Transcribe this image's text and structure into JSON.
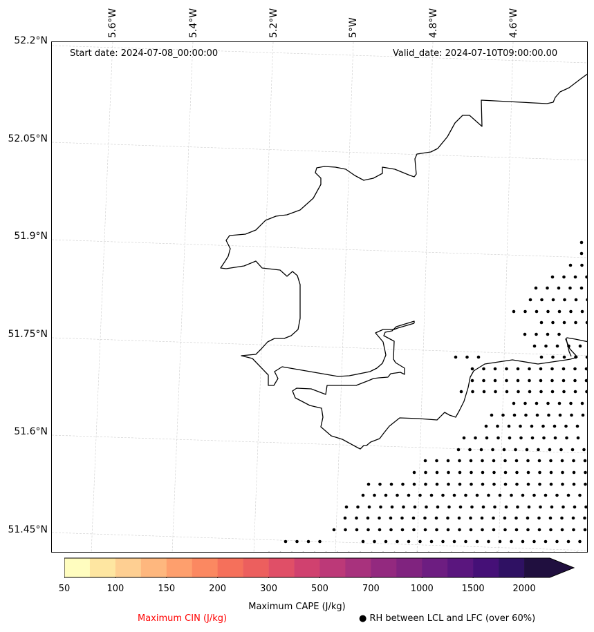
{
  "map": {
    "start_date": "Start date: 2024-07-08_00:00:00",
    "valid_date": "Valid_date: 2024-07-10T09:00:00.00",
    "lat_labels": [
      "52.2°N",
      "52.05°N",
      "51.9°N",
      "51.75°N",
      "51.6°N",
      "51.45°N"
    ],
    "lon_labels": [
      "5.6°W",
      "5.4°W",
      "5.2°W",
      "5°W",
      "4.8°W",
      "4.6°W"
    ],
    "coastline_color": "#000000",
    "gridline_color": "#cccccc",
    "dot_region": "bottom-right, over sea"
  },
  "colorbar": {
    "ticks": [
      "50",
      "100",
      "150",
      "200",
      "300",
      "500",
      "700",
      "1000",
      "1500",
      "2000"
    ],
    "bounds": [
      50,
      75,
      100,
      125,
      150,
      175,
      200,
      250,
      300,
      400,
      500,
      600,
      700,
      850,
      1000,
      1250,
      1500,
      1750,
      2000
    ],
    "colors": [
      "#fffdbf",
      "#fee6a1",
      "#fecf92",
      "#feb77e",
      "#fe9f6d",
      "#fb8861",
      "#f5705b",
      "#ec5f5e",
      "#e04f67",
      "#d0416f",
      "#bc3978",
      "#a8327d",
      "#93297f",
      "#80237f",
      "#6d1d81",
      "#5a167e",
      "#451077",
      "#2f1163",
      "#200f3f"
    ],
    "label": "Maximum CAPE (J/kg)",
    "extend": "max"
  },
  "legend": {
    "cin_label": "Maximum CIN (J/kg)",
    "cin_color": "#ff0000",
    "rh_label": "● RH between LCL and LFC (over 60%)"
  }
}
